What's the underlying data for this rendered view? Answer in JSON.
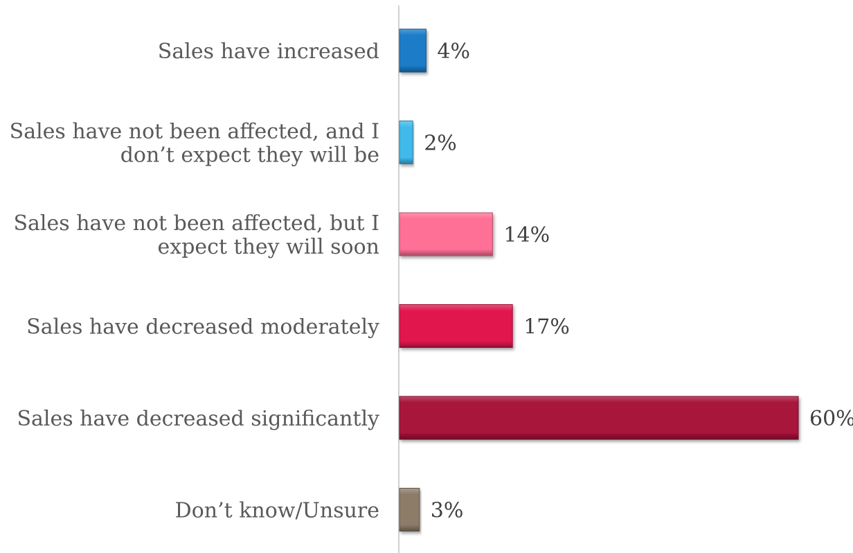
{
  "chart_data": {
    "type": "bar",
    "orientation": "horizontal",
    "categories": [
      [
        "Sales have increased"
      ],
      [
        "Sales have not been affected, and I",
        "don’t expect they will be"
      ],
      [
        "Sales have not been affected, but I",
        "expect they will soon"
      ],
      [
        "Sales have decreased moderately"
      ],
      [
        "Sales have decreased significantly"
      ],
      [
        "Don’t know/Unsure"
      ]
    ],
    "values": [
      4,
      2,
      14,
      17,
      60,
      3
    ],
    "value_labels": [
      "4%",
      "2%",
      "14%",
      "17%",
      "60%",
      "3%"
    ],
    "unit": "%",
    "colors": [
      "#1a7cc8",
      "#3fb9ec",
      "#ff6f96",
      "#e0174e",
      "#a8123a",
      "#8c7b68"
    ],
    "title": "",
    "xlabel": "",
    "ylabel": "",
    "xlim": [
      0,
      60
    ],
    "grid": false,
    "legend": "none"
  }
}
